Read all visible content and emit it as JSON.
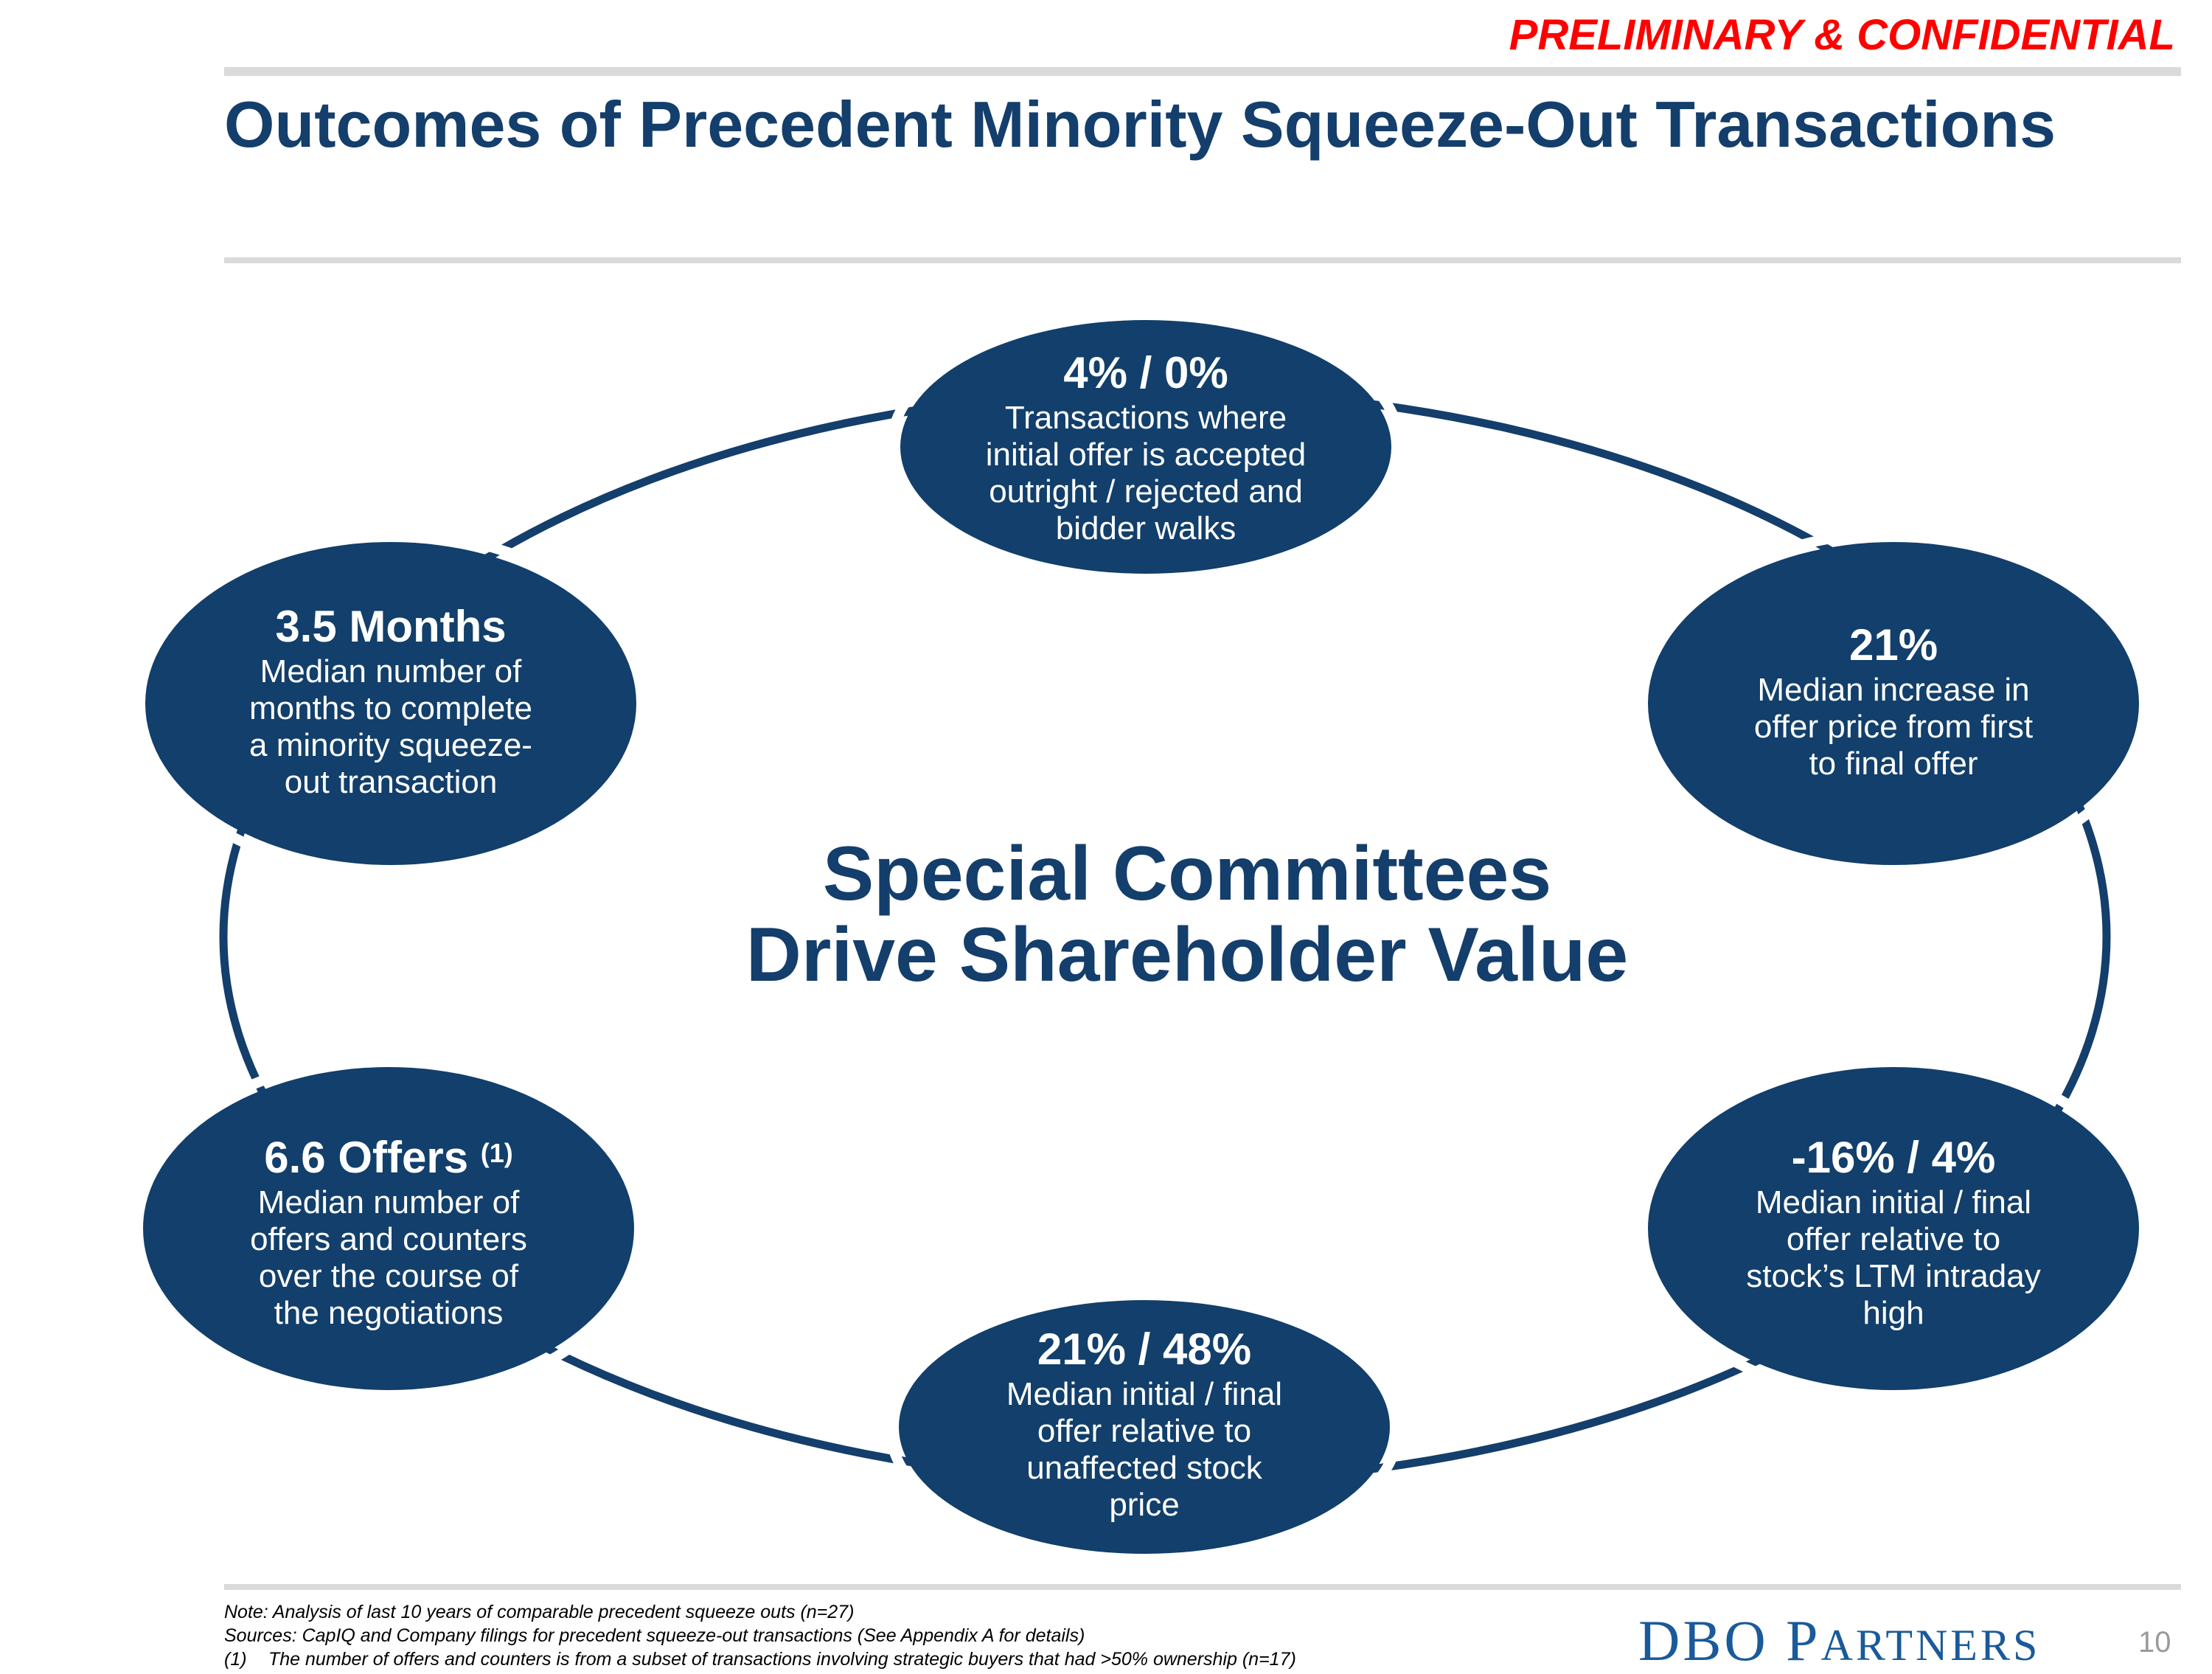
{
  "header": {
    "confidential_label": "PRELIMINARY & CONFIDENTIAL",
    "title": "Outcomes of Precedent Minority Squeeze-Out Transactions"
  },
  "center": {
    "line1": "Special Committees",
    "line2": "Drive Shareholder Value"
  },
  "nodes": [
    {
      "headline": "4% / 0%",
      "text": "Transactions where initial offer is accepted outright / rejected and bidder walks"
    },
    {
      "headline": "21%",
      "text": "Median increase in offer price from first to final offer"
    },
    {
      "headline": "-16% / 4%",
      "text": "Median initial / final offer relative to stock’s LTM intraday high"
    },
    {
      "headline": "21% / 48%",
      "text": "Median initial / final offer relative to unaffected stock price"
    },
    {
      "headline": "6.6 Offers",
      "footnote_ref": "(1)",
      "text": "Median number of offers and counters over the course of the negotiations"
    },
    {
      "headline": "3.5 Months",
      "text": "Median number of months to complete a minority squeeze-out transaction"
    }
  ],
  "footer": {
    "note": "Note: Analysis of last 10 years of comparable precedent squeeze outs (n=27)",
    "sources": "Sources: CapIQ and Company filings for precedent squeeze-out transactions (See Appendix A for details)",
    "footnote_num": "(1)",
    "footnote_text": "The number of offers and counters is from a subset of transactions involving strategic buyers that had >50% ownership (n=17)",
    "logo_text": "DBO Partners",
    "page_number": "10"
  },
  "colors": {
    "navy": "#123f6b",
    "red": "#ff0000",
    "rule": "#dadada"
  }
}
